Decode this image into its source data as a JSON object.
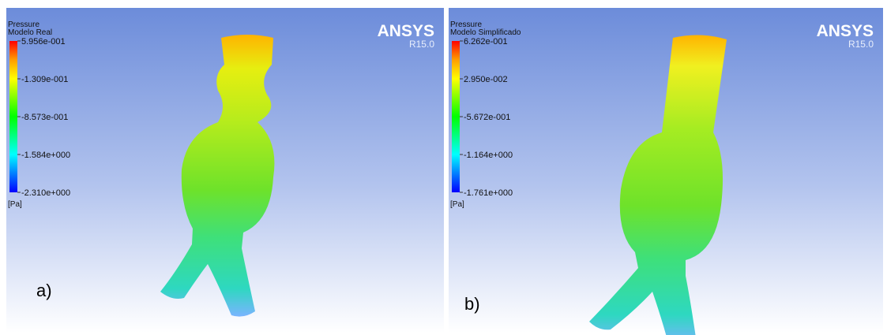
{
  "panels": [
    {
      "legend_title": "Pressure",
      "legend_subtitle": "Modelo Real",
      "legend_labels": [
        "5.956e-001",
        "-1.309e-001",
        "-8.573e-001",
        "-1.584e+000",
        "-2.310e+000"
      ],
      "unit": "[Pa]",
      "brand": "ANSYS",
      "version": "R15.0",
      "caption": "a)"
    },
    {
      "legend_title": "Pressure",
      "legend_subtitle": "Modelo Simplificado",
      "legend_labels": [
        "6.262e-001",
        "2.950e-002",
        "-5.672e-001",
        "-1.164e+000",
        "-1.761e+000"
      ],
      "unit": "[Pa]",
      "brand": "ANSYS",
      "version": "R15.0",
      "caption": "b)"
    }
  ]
}
